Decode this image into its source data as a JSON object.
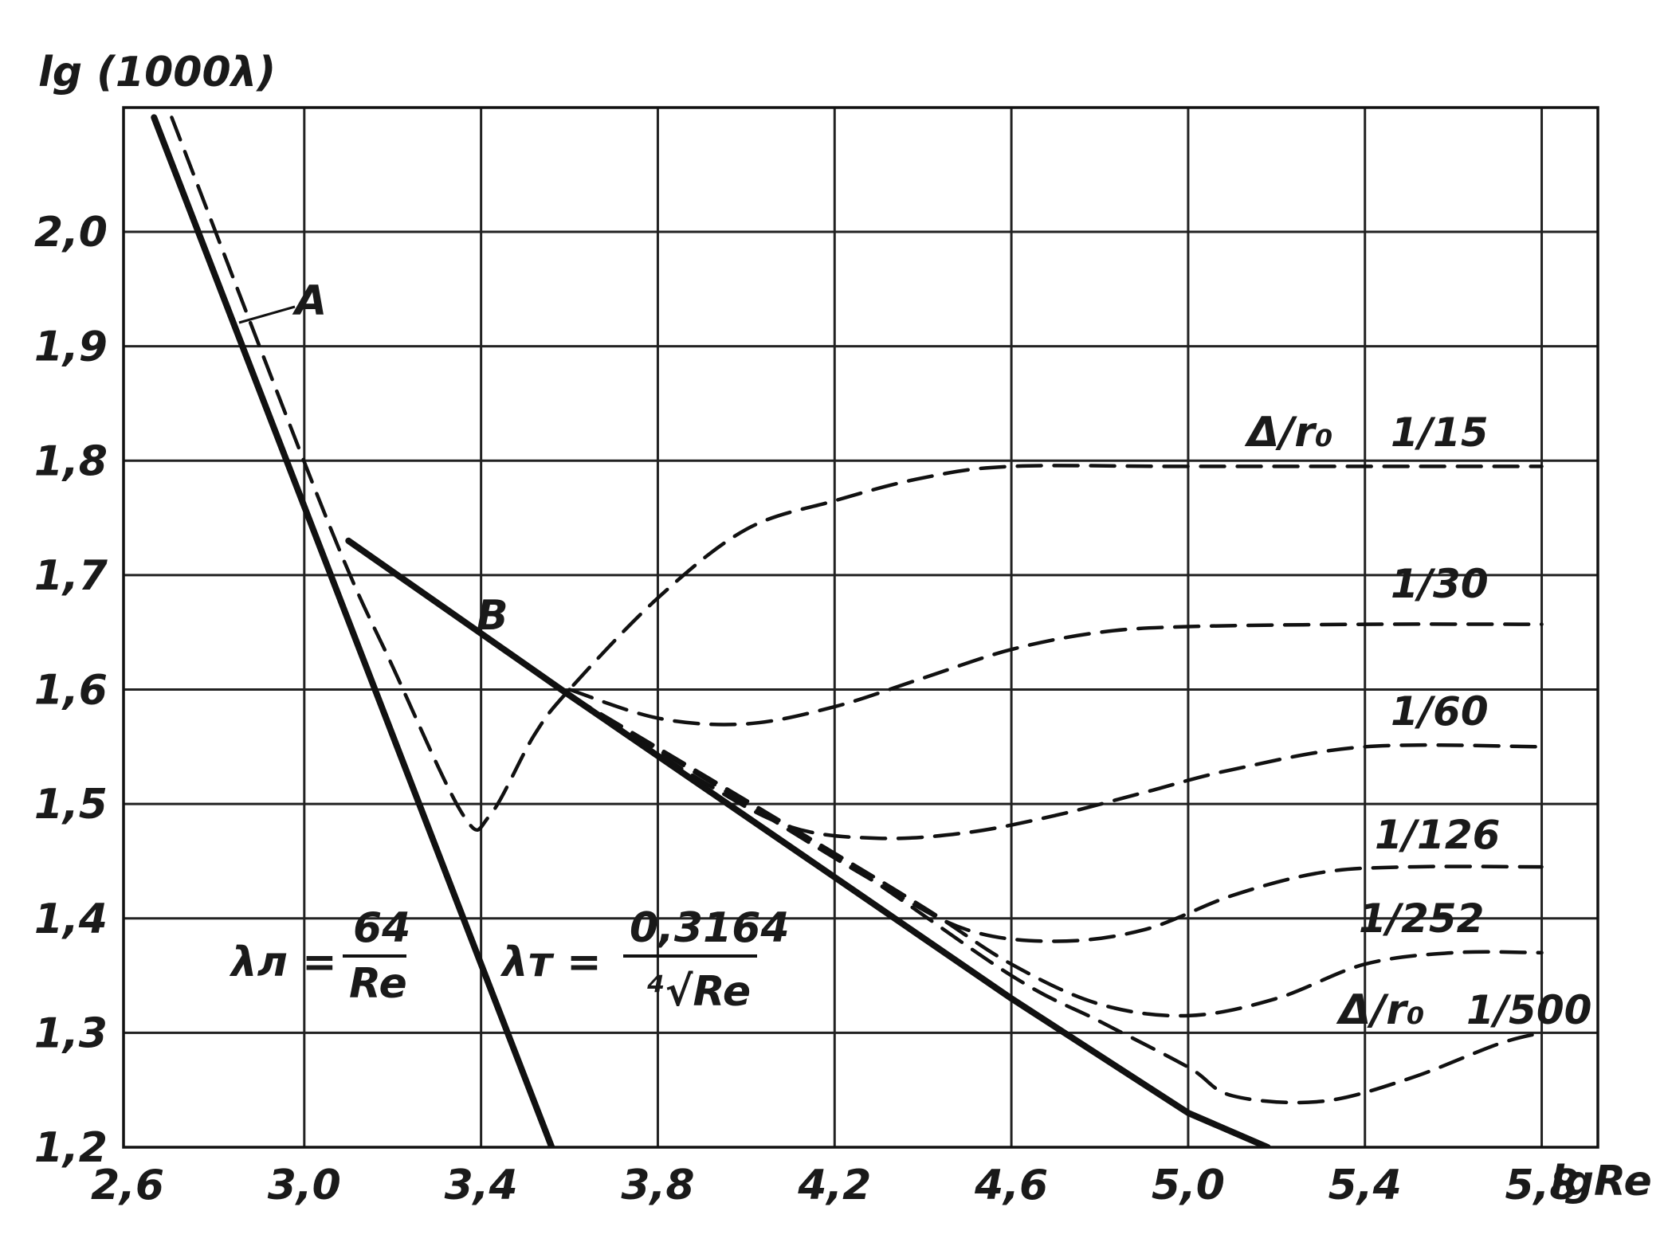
{
  "chart_data": {
    "type": "line",
    "xlabel": "lgRe",
    "ylabel": "lg (1000λ)",
    "xlim": [
      2.6,
      5.8
    ],
    "ylim": [
      1.2,
      2.1
    ],
    "x_ticks": [
      "2,6",
      "3,0",
      "3,4",
      "3,8",
      "4,2",
      "4,6",
      "5,0",
      "5,4",
      "5,8"
    ],
    "y_ticks": [
      "1,2",
      "1,3",
      "1,4",
      "1,5",
      "1,6",
      "1,7",
      "1,8",
      "1,9",
      "2,0"
    ],
    "grid": true,
    "formula_laminar": {
      "lhs": "λл =",
      "num": "64",
      "den": "Re"
    },
    "formula_turbulent": {
      "lhs": "λт =",
      "num": "0,3164",
      "den": "⁴√Re"
    },
    "point_labels": {
      "a": "A",
      "b": "B"
    },
    "legend_header_1": "Δ/r₀",
    "legend_header_2": "Δ/r₀",
    "series": [
      {
        "name": "64/Re",
        "style": "solid",
        "x": [
          2.66,
          3.4,
          3.58
        ],
        "y": [
          2.1,
          1.36,
          1.18
        ]
      },
      {
        "name": "0,3164/⁴√Re",
        "style": "solid",
        "x": [
          3.1,
          3.6,
          4.6,
          5.0,
          5.18
        ],
        "y": [
          1.73,
          1.595,
          1.33,
          1.23,
          1.2
        ]
      },
      {
        "name": "1/15",
        "style": "dashed",
        "x": [
          2.7,
          3.05,
          3.2,
          3.36,
          3.42,
          3.52,
          3.6,
          3.8,
          4.0,
          4.2,
          4.4,
          4.6,
          5.0,
          5.6,
          5.8
        ],
        "y": [
          2.1,
          1.75,
          1.62,
          1.49,
          1.49,
          1.56,
          1.6,
          1.68,
          1.74,
          1.765,
          1.785,
          1.795,
          1.795,
          1.795,
          1.795
        ]
      },
      {
        "name": "1/30",
        "style": "dashed",
        "x": [
          3.6,
          3.8,
          4.0,
          4.2,
          4.4,
          4.6,
          4.8,
          5.0,
          5.4,
          5.8
        ],
        "y": [
          1.6,
          1.575,
          1.57,
          1.585,
          1.61,
          1.635,
          1.65,
          1.655,
          1.657,
          1.657
        ]
      },
      {
        "name": "1/60",
        "style": "dashed",
        "x": [
          3.6,
          3.9,
          4.1,
          4.3,
          4.5,
          4.7,
          4.9,
          5.1,
          5.4,
          5.8
        ],
        "y": [
          1.595,
          1.52,
          1.48,
          1.47,
          1.475,
          1.49,
          1.51,
          1.53,
          1.55,
          1.55
        ]
      },
      {
        "name": "1/126",
        "style": "dashed",
        "x": [
          3.6,
          4.0,
          4.3,
          4.5,
          4.7,
          4.9,
          5.1,
          5.3,
          5.5,
          5.8
        ],
        "y": [
          1.595,
          1.5,
          1.43,
          1.39,
          1.38,
          1.39,
          1.42,
          1.44,
          1.445,
          1.445
        ]
      },
      {
        "name": "1/252",
        "style": "dashed",
        "x": [
          3.6,
          4.1,
          4.4,
          4.6,
          4.8,
          5.0,
          5.2,
          5.4,
          5.6,
          5.8
        ],
        "y": [
          1.595,
          1.48,
          1.41,
          1.36,
          1.325,
          1.315,
          1.33,
          1.36,
          1.37,
          1.37
        ]
      },
      {
        "name": "1/500",
        "style": "dashed",
        "x": [
          3.6,
          4.2,
          4.6,
          4.8,
          5.0,
          5.1,
          5.3,
          5.5,
          5.7,
          5.8
        ],
        "y": [
          1.595,
          1.455,
          1.35,
          1.31,
          1.27,
          1.245,
          1.24,
          1.26,
          1.29,
          1.3
        ]
      }
    ]
  }
}
